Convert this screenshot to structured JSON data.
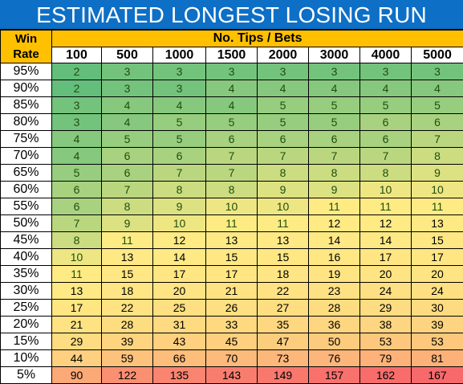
{
  "title": "ESTIMATED LONGEST LOSING RUN",
  "header": {
    "win_rate_line1": "Win",
    "win_rate_line2": "Rate",
    "tips_label": "No. Tips / Bets",
    "columns": [
      "100",
      "500",
      "1000",
      "1500",
      "2000",
      "3000",
      "4000",
      "5000"
    ]
  },
  "rows": [
    {
      "rate": "95%",
      "values": [
        "2",
        "3",
        "3",
        "3",
        "3",
        "3",
        "3",
        "3"
      ]
    },
    {
      "rate": "90%",
      "values": [
        "2",
        "3",
        "3",
        "4",
        "4",
        "4",
        "4",
        "4"
      ]
    },
    {
      "rate": "85%",
      "values": [
        "3",
        "4",
        "4",
        "4",
        "5",
        "5",
        "5",
        "5"
      ]
    },
    {
      "rate": "80%",
      "values": [
        "3",
        "4",
        "5",
        "5",
        "5",
        "5",
        "6",
        "6"
      ]
    },
    {
      "rate": "75%",
      "values": [
        "4",
        "5",
        "5",
        "6",
        "6",
        "6",
        "6",
        "7"
      ]
    },
    {
      "rate": "70%",
      "values": [
        "4",
        "6",
        "6",
        "7",
        "7",
        "7",
        "7",
        "8"
      ]
    },
    {
      "rate": "65%",
      "values": [
        "5",
        "6",
        "7",
        "7",
        "8",
        "8",
        "8",
        "9"
      ]
    },
    {
      "rate": "60%",
      "values": [
        "6",
        "7",
        "8",
        "8",
        "9",
        "9",
        "10",
        "10"
      ]
    },
    {
      "rate": "55%",
      "values": [
        "6",
        "8",
        "9",
        "10",
        "10",
        "11",
        "11",
        "11"
      ]
    },
    {
      "rate": "50%",
      "values": [
        "7",
        "9",
        "10",
        "11",
        "11",
        "12",
        "12",
        "13"
      ]
    },
    {
      "rate": "45%",
      "values": [
        "8",
        "11",
        "12",
        "13",
        "13",
        "14",
        "14",
        "15"
      ]
    },
    {
      "rate": "40%",
      "values": [
        "10",
        "13",
        "14",
        "15",
        "15",
        "16",
        "17",
        "17"
      ]
    },
    {
      "rate": "35%",
      "values": [
        "11",
        "15",
        "17",
        "17",
        "18",
        "19",
        "20",
        "20"
      ]
    },
    {
      "rate": "30%",
      "values": [
        "13",
        "18",
        "20",
        "21",
        "22",
        "23",
        "24",
        "24"
      ]
    },
    {
      "rate": "25%",
      "values": [
        "17",
        "22",
        "25",
        "26",
        "27",
        "28",
        "29",
        "30"
      ]
    },
    {
      "rate": "20%",
      "values": [
        "21",
        "28",
        "31",
        "33",
        "35",
        "36",
        "38",
        "39"
      ]
    },
    {
      "rate": "15%",
      "values": [
        "29",
        "39",
        "43",
        "45",
        "47",
        "50",
        "53",
        "53"
      ]
    },
    {
      "rate": "10%",
      "values": [
        "44",
        "59",
        "66",
        "70",
        "73",
        "76",
        "79",
        "81"
      ]
    },
    {
      "rate": "5%",
      "values": [
        "90",
        "122",
        "135",
        "143",
        "149",
        "157",
        "162",
        "167"
      ]
    }
  ],
  "colors": {
    "title_bg": "#0d6fc6",
    "header_bg": "#ffc000",
    "scale_low": "#63be7b",
    "scale_mid": "#ffeb84",
    "scale_high": "#f8696b"
  }
}
